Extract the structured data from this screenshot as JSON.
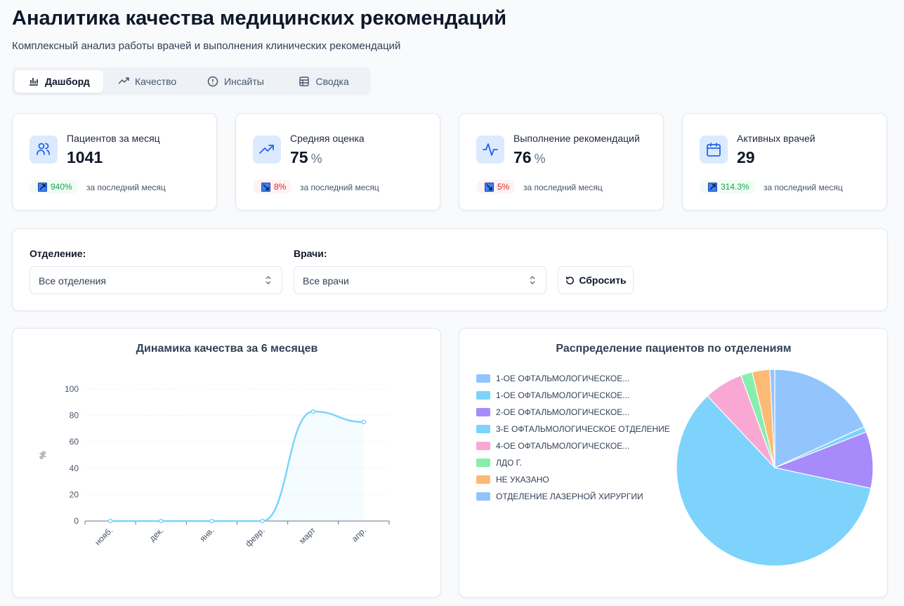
{
  "header": {
    "title": "Аналитика качества медицинских рекомендаций",
    "subtitle": "Комплексный анализ работы врачей и выполнения клинических рекомендаций"
  },
  "tabs": [
    "Дашборд",
    "Качество",
    "Инсайты",
    "Сводка"
  ],
  "kpis": [
    {
      "label": "Пациентов за месяц",
      "value": "1041",
      "change": "940%",
      "trend": "up",
      "caption": "за последний месяц"
    },
    {
      "label": "Средняя оценка",
      "value": "75",
      "unit": "%",
      "change": "8%",
      "trend": "down",
      "caption": "за последний месяц"
    },
    {
      "label": "Выполнение рекомендаций",
      "value": "76",
      "unit": "%",
      "change": "5%",
      "trend": "down",
      "caption": "за последний месяц"
    },
    {
      "label": "Активных врачей",
      "value": "29",
      "change": "314.3%",
      "trend": "up",
      "caption": "за последний месяц"
    }
  ],
  "filters": {
    "department_label": "Отделение:",
    "department_value": "Все отделения",
    "doctors_label": "Врачи:",
    "doctors_value": "Все врачи",
    "reset": "Сбросить"
  },
  "chart_data": [
    {
      "type": "line",
      "title": "Динамика качества за 6 месяцев",
      "ylabel": "%",
      "categories": [
        "нояб.",
        "дек.",
        "янв.",
        "февр.",
        "март",
        "апр."
      ],
      "values": [
        0,
        0,
        0,
        0,
        83,
        75
      ],
      "color": "#7dd3fc",
      "ylim": [
        0,
        100
      ],
      "yticks": [
        0,
        20,
        40,
        60,
        80,
        100
      ],
      "grid": true
    },
    {
      "type": "pie",
      "title": "Распределение пациентов по отделениям",
      "categories": [
        "1-ОЕ ОФТАЛЬМОЛОГИЧЕСКОЕ...",
        "1-ОЕ ОФТАЛЬМОЛОГИЧЕСКОЕ...",
        "2-ОЕ ОФТАЛЬМОЛОГИЧЕСКОЕ...",
        "3-Е ОФТАЛЬМОЛОГИЧЕСКОЕ ОТДЕЛЕНИЕ",
        "4-ОЕ ОФТАЛЬМОЛОГИЧЕСКОЕ...",
        "ЛДО Г.",
        "НЕ УКАЗАНО",
        "ОТДЕЛЕНИЕ ЛАЗЕРНОЙ ХИРУРГИИ"
      ],
      "values": [
        18.2,
        0.9,
        9.3,
        59.7,
        6.4,
        1.9,
        2.9,
        0.8
      ],
      "colors": [
        "#93c5fd",
        "#7dd3fc",
        "#a78bfa",
        "#7dd3fc",
        "#f9a8d4",
        "#86efac",
        "#fdba74",
        "#93c5fd"
      ]
    }
  ]
}
